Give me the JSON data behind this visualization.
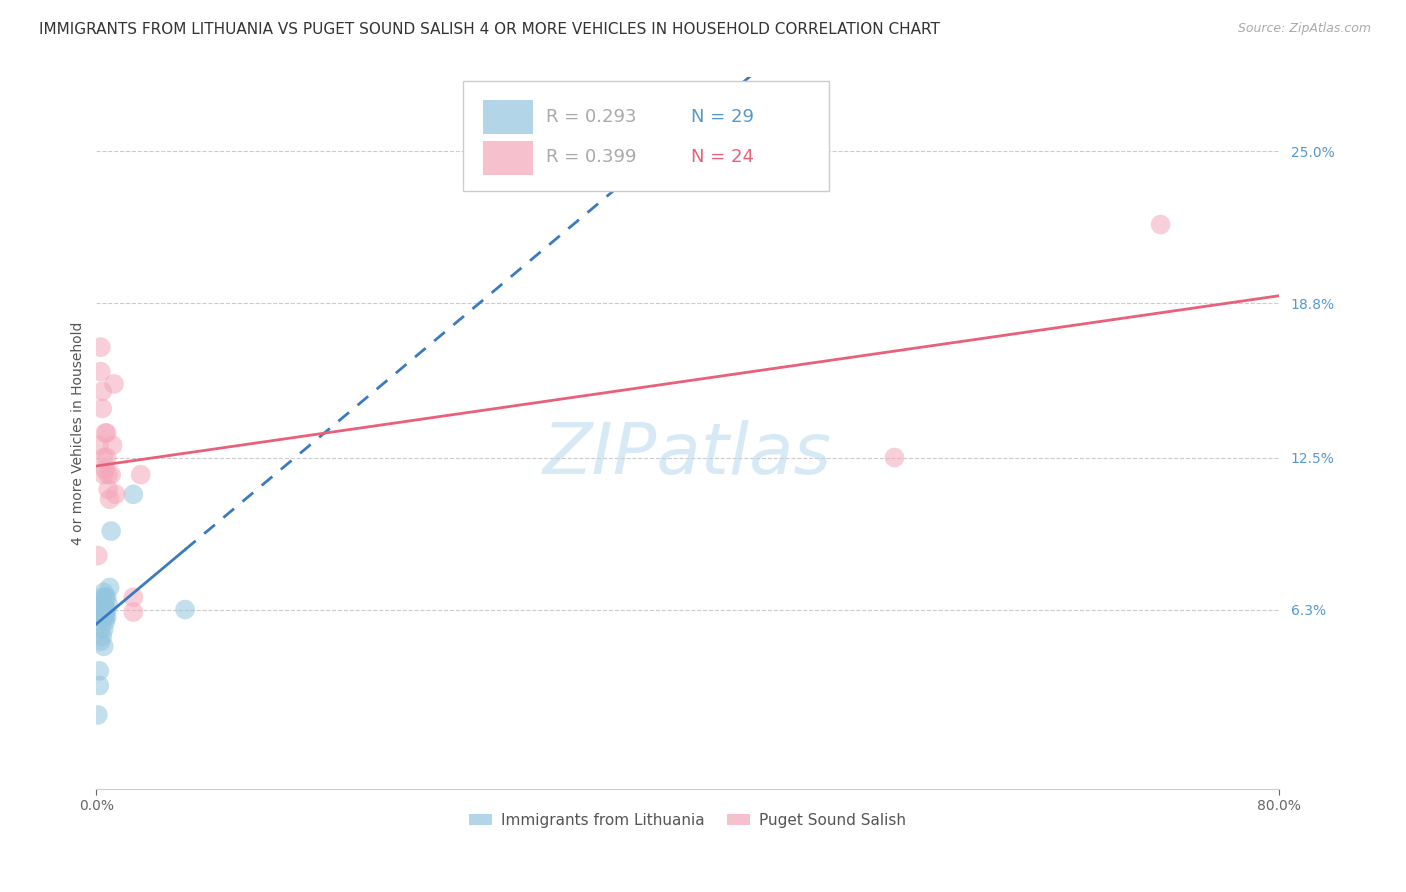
{
  "title": "IMMIGRANTS FROM LITHUANIA VS PUGET SOUND SALISH 4 OR MORE VEHICLES IN HOUSEHOLD CORRELATION CHART",
  "source": "Source: ZipAtlas.com",
  "ylabel": "4 or more Vehicles in Household",
  "ytick_labels": [
    "25.0%",
    "18.8%",
    "12.5%",
    "6.3%"
  ],
  "ytick_values": [
    0.25,
    0.188,
    0.125,
    0.063
  ],
  "xlim": [
    0.0,
    0.8
  ],
  "ylim": [
    -0.01,
    0.28
  ],
  "legend_blue_r": "R = 0.293",
  "legend_blue_n": "N = 29",
  "legend_pink_r": "R = 0.399",
  "legend_pink_n": "N = 24",
  "watermark": "ZIPatlas",
  "blue_color": "#92c5de",
  "pink_color": "#f4a6b8",
  "blue_line_color": "#3a7bbf",
  "pink_line_color": "#e8607a",
  "blue_x": [
    0.001,
    0.002,
    0.002,
    0.003,
    0.003,
    0.003,
    0.003,
    0.004,
    0.004,
    0.004,
    0.004,
    0.005,
    0.005,
    0.005,
    0.005,
    0.005,
    0.005,
    0.006,
    0.006,
    0.006,
    0.006,
    0.007,
    0.007,
    0.007,
    0.008,
    0.009,
    0.01,
    0.025,
    0.06
  ],
  "blue_y": [
    0.02,
    0.032,
    0.038,
    0.05,
    0.055,
    0.06,
    0.065,
    0.052,
    0.06,
    0.062,
    0.068,
    0.048,
    0.055,
    0.06,
    0.062,
    0.065,
    0.07,
    0.058,
    0.06,
    0.063,
    0.068,
    0.06,
    0.063,
    0.068,
    0.065,
    0.072,
    0.095,
    0.11,
    0.063
  ],
  "pink_x": [
    0.001,
    0.002,
    0.003,
    0.003,
    0.004,
    0.004,
    0.005,
    0.005,
    0.006,
    0.006,
    0.007,
    0.007,
    0.008,
    0.008,
    0.009,
    0.01,
    0.011,
    0.012,
    0.013,
    0.025,
    0.025,
    0.03,
    0.54,
    0.72
  ],
  "pink_y": [
    0.085,
    0.13,
    0.16,
    0.17,
    0.145,
    0.152,
    0.118,
    0.125,
    0.12,
    0.135,
    0.125,
    0.135,
    0.112,
    0.118,
    0.108,
    0.118,
    0.13,
    0.155,
    0.11,
    0.062,
    0.068,
    0.118,
    0.125,
    0.22
  ],
  "title_fontsize": 11,
  "source_fontsize": 9,
  "axis_label_fontsize": 10,
  "tick_fontsize": 10,
  "legend_fontsize": 13,
  "watermark_fontsize": 52
}
